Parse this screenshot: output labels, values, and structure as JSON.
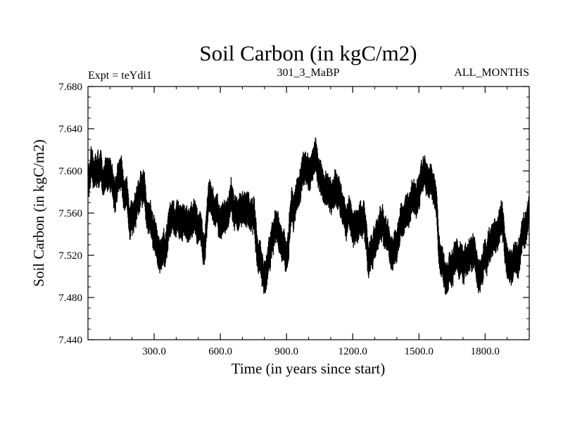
{
  "chart_data": {
    "type": "line",
    "title": "Soil Carbon (in kgC/m2)",
    "subtitle_left": "Expt = teYdi1",
    "subtitle_center": "301_3_MaBP",
    "subtitle_right": "ALL_MONTHS",
    "xlabel": "Time (in years since start)",
    "ylabel": "Soil Carbon (in kgC/m2)",
    "xlim": [
      0,
      2000
    ],
    "ylim": [
      7.44,
      7.68
    ],
    "x_ticks": [
      300,
      600,
      900,
      1200,
      1500,
      1800
    ],
    "x_tick_labels": [
      "300.0",
      "600.0",
      "900.0",
      "1200.0",
      "1500.0",
      "1800.0"
    ],
    "y_ticks": [
      7.44,
      7.48,
      7.52,
      7.56,
      7.6,
      7.64,
      7.68
    ],
    "y_tick_labels": [
      "7.440",
      "7.480",
      "7.520",
      "7.560",
      "7.600",
      "7.640",
      "7.680"
    ],
    "grid": false,
    "series": [
      {
        "name": "Soil Carbon",
        "color": "#000000",
        "x": [
          0,
          25,
          50,
          75,
          100,
          125,
          150,
          175,
          200,
          225,
          250,
          275,
          300,
          325,
          350,
          375,
          400,
          425,
          450,
          475,
          500,
          525,
          550,
          575,
          600,
          625,
          650,
          675,
          700,
          725,
          750,
          775,
          800,
          825,
          850,
          875,
          900,
          925,
          950,
          975,
          1000,
          1025,
          1050,
          1075,
          1100,
          1125,
          1150,
          1175,
          1200,
          1225,
          1250,
          1275,
          1300,
          1325,
          1350,
          1375,
          1400,
          1425,
          1450,
          1475,
          1500,
          1525,
          1550,
          1575,
          1600,
          1625,
          1650,
          1675,
          1700,
          1725,
          1750,
          1775,
          1800,
          1825,
          1850,
          1875,
          1900,
          1925,
          1950,
          1975,
          2000
        ],
        "y": [
          7.59,
          7.6,
          7.6,
          7.59,
          7.6,
          7.58,
          7.6,
          7.57,
          7.56,
          7.57,
          7.58,
          7.56,
          7.54,
          7.52,
          7.53,
          7.56,
          7.55,
          7.55,
          7.55,
          7.55,
          7.55,
          7.53,
          7.58,
          7.56,
          7.55,
          7.56,
          7.57,
          7.56,
          7.56,
          7.56,
          7.56,
          7.52,
          7.5,
          7.53,
          7.55,
          7.53,
          7.52,
          7.56,
          7.58,
          7.6,
          7.6,
          7.61,
          7.6,
          7.58,
          7.57,
          7.58,
          7.57,
          7.56,
          7.55,
          7.55,
          7.55,
          7.52,
          7.53,
          7.55,
          7.54,
          7.52,
          7.53,
          7.55,
          7.56,
          7.57,
          7.58,
          7.6,
          7.59,
          7.58,
          7.51,
          7.5,
          7.51,
          7.52,
          7.51,
          7.52,
          7.52,
          7.5,
          7.52,
          7.53,
          7.54,
          7.55,
          7.52,
          7.51,
          7.52,
          7.54,
          7.56
        ]
      }
    ]
  }
}
